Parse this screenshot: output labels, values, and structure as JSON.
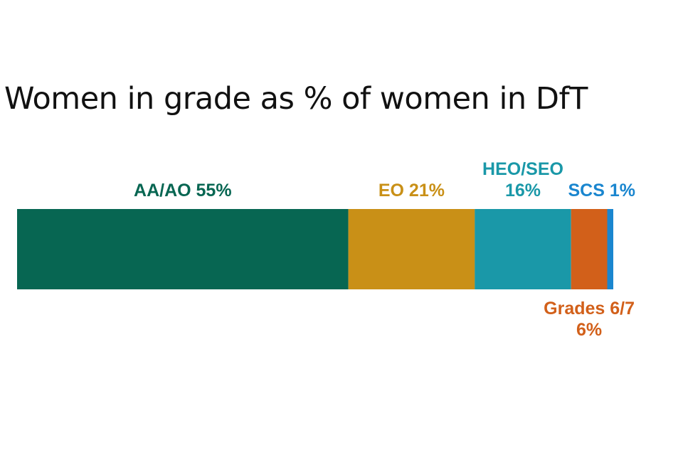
{
  "chart_data": {
    "type": "bar",
    "subtype": "stacked-100-horizontal",
    "title": "Women in grade as % of women in DfT",
    "xlabel": "",
    "ylabel": "",
    "xlim": [
      0,
      100
    ],
    "grid": false,
    "legend": "none",
    "categories": [
      "AA/AO",
      "EO",
      "HEO/SEO",
      "Grades 6/7",
      "SCS"
    ],
    "values": [
      55,
      21,
      16,
      6,
      1
    ],
    "unit": "%",
    "colors": [
      "#076652",
      "#c99017",
      "#1a98a8",
      "#d2601a",
      "#1a86cf"
    ],
    "labels": [
      {
        "name": "AA/AO",
        "lines": [
          "AA/AO 55%"
        ],
        "placement": "above"
      },
      {
        "name": "EO",
        "lines": [
          "EO 21%"
        ],
        "placement": "above"
      },
      {
        "name": "HEO/SEO",
        "lines": [
          "HEO/SEO",
          "16%"
        ],
        "placement": "above"
      },
      {
        "name": "Grades 6/7",
        "lines": [
          "Grades 6/7",
          "6%"
        ],
        "placement": "below"
      },
      {
        "name": "SCS",
        "lines": [
          "SCS 1%"
        ],
        "placement": "above-right"
      }
    ]
  }
}
